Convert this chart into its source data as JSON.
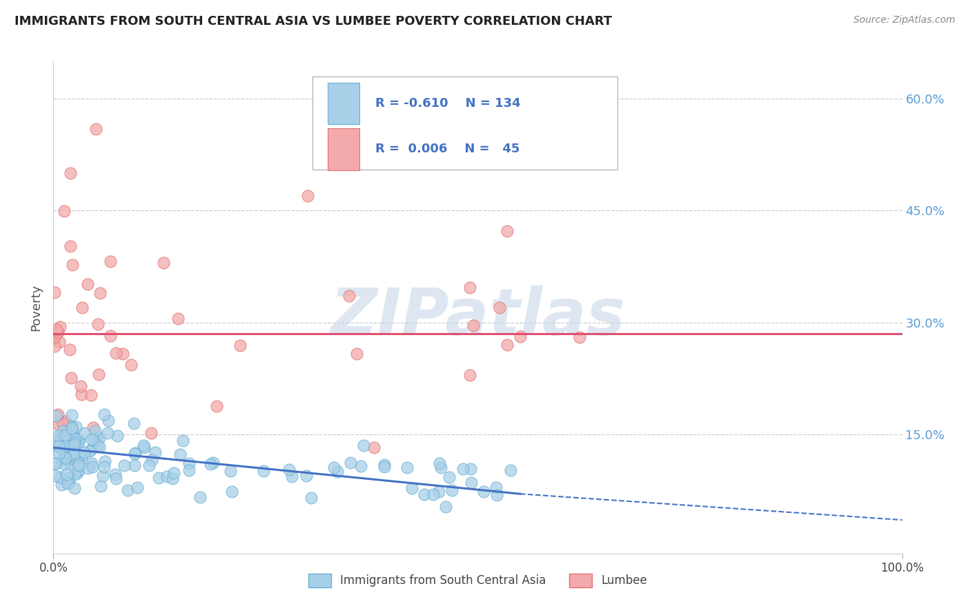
{
  "title": "IMMIGRANTS FROM SOUTH CENTRAL ASIA VS LUMBEE POVERTY CORRELATION CHART",
  "source": "Source: ZipAtlas.com",
  "ylabel": "Poverty",
  "xlim": [
    0,
    100
  ],
  "ylim": [
    -1,
    65
  ],
  "ytick_vals": [
    15,
    30,
    45,
    60
  ],
  "ytick_labels": [
    "15.0%",
    "30.0%",
    "45.0%",
    "60.0%"
  ],
  "xtick_vals": [
    0,
    100
  ],
  "xtick_labels": [
    "0.0%",
    "100.0%"
  ],
  "blue_fill": "#a8d0e8",
  "blue_edge": "#6aafd4",
  "blue_line": "#4472c4",
  "pink_fill": "#f4aaaa",
  "pink_edge": "#e07070",
  "pink_line": "#e05070",
  "grid_color": "#cccccc",
  "bg_color": "#ffffff",
  "title_color": "#222222",
  "right_tick_color": "#5b9bd5",
  "watermark_color": "#c8d8e8",
  "legend_text_color": "#4472c4",
  "blue_trend_x0": 0,
  "blue_trend_y0": 13.2,
  "blue_trend_x1": 55,
  "blue_trend_y1": 7.0,
  "blue_dash_x0": 55,
  "blue_dash_y0": 7.0,
  "blue_dash_x1": 100,
  "blue_dash_y1": 3.5,
  "pink_trend_y": 28.5,
  "pink_trend_x0": 0,
  "pink_trend_x1": 100
}
